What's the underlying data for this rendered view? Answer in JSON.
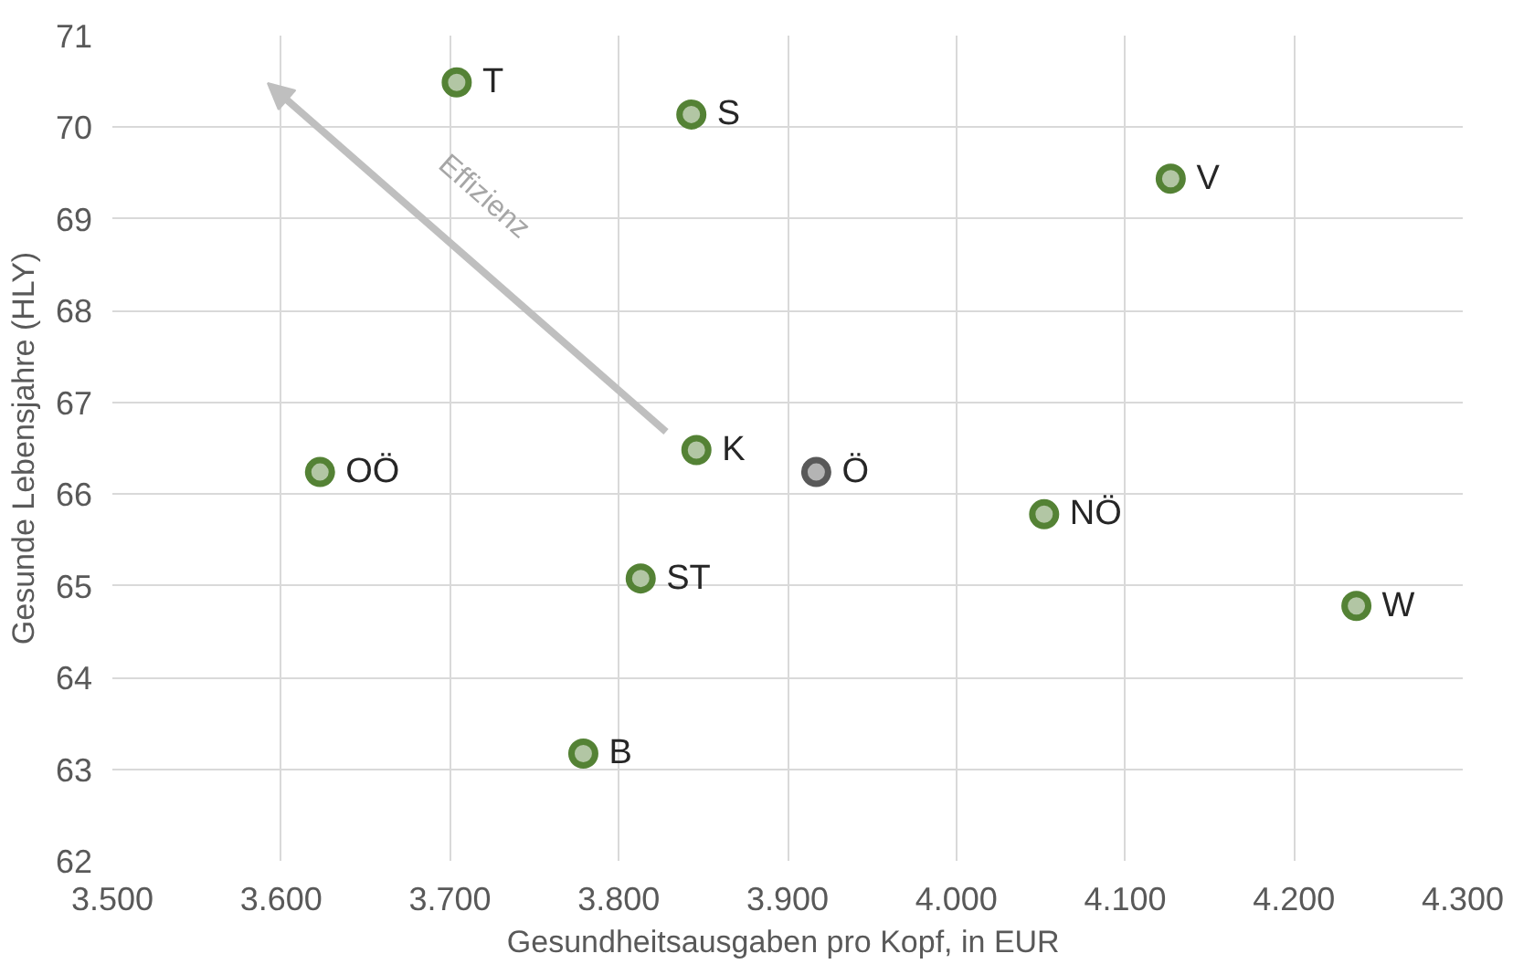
{
  "chart_data": {
    "type": "scatter",
    "xlabel": "Gesundheitsausgaben  pro Kopf, in EUR",
    "ylabel": "Gesunde Lebensjahre (HLY)",
    "x": [
      3704,
      3843,
      4127,
      3623,
      3846,
      3917,
      4052,
      3813,
      4237,
      3779
    ],
    "values": [
      70.49,
      70.14,
      69.44,
      66.24,
      66.48,
      66.24,
      65.78,
      65.08,
      64.78,
      63.17
    ],
    "colors": [
      "#548235",
      "#548235",
      "#548235",
      "#548235",
      "#548235",
      "#595959",
      "#548235",
      "#548235",
      "#548235",
      "#548235"
    ],
    "marker": "circle",
    "xlim": [
      3500,
      4300
    ],
    "ylim": [
      62,
      71
    ],
    "xticks": [
      {
        "value": 3500,
        "label": "3.500"
      },
      {
        "value": 3600,
        "label": "3.600"
      },
      {
        "value": 3700,
        "label": "3.700"
      },
      {
        "value": 3800,
        "label": "3.800"
      },
      {
        "value": 3900,
        "label": "3.900"
      },
      {
        "value": 4000,
        "label": "4.000"
      },
      {
        "value": 4100,
        "label": "4.100"
      },
      {
        "value": 4200,
        "label": "4.200"
      },
      {
        "value": 4300,
        "label": "4.300"
      }
    ],
    "yticks": [
      62,
      63,
      64,
      65,
      66,
      67,
      68,
      69,
      70,
      71
    ],
    "grid": true,
    "annotations": [
      {
        "text": "T",
        "x": 3704,
        "y": 70.49
      },
      {
        "text": "S",
        "x": 3843,
        "y": 70.14
      },
      {
        "text": "V",
        "x": 4127,
        "y": 69.44
      },
      {
        "text": "OÖ",
        "x": 3623,
        "y": 66.24
      },
      {
        "text": "K",
        "x": 3846,
        "y": 66.48
      },
      {
        "text": "Ö",
        "x": 3917,
        "y": 66.24
      },
      {
        "text": "NÖ",
        "x": 4052,
        "y": 65.78
      },
      {
        "text": "ST",
        "x": 3813,
        "y": 65.08
      },
      {
        "text": "W",
        "x": 4237,
        "y": 64.78
      },
      {
        "text": "B",
        "x": 3779,
        "y": 63.17
      },
      "Effizienz"
    ]
  }
}
